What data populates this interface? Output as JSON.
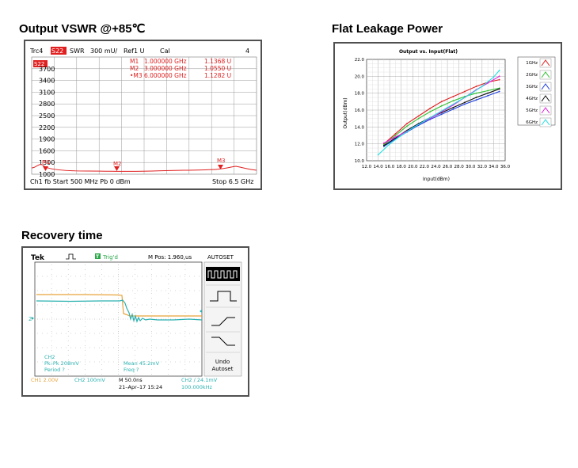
{
  "headings": {
    "vswr": "Output VSWR @+85℃",
    "leakage": "Flat Leakage Power",
    "recovery": "Recovery time"
  },
  "vswr_screen": {
    "trace": "Trc4",
    "param": "S22",
    "format": "SWR",
    "scale": "300 mU/",
    "ref": "Ref1 U",
    "cal": "Cal",
    "channel_num": "4",
    "trace_tag": "S22",
    "markers": [
      {
        "label": "M1",
        "freq": "1.000000 GHz",
        "value": "1.1368 U"
      },
      {
        "label": "M2",
        "freq": "3.000000 GHz",
        "value": "1.0550 U"
      },
      {
        "label": "•M3",
        "freq": "6.000000 GHz",
        "value": "1.1282 U"
      }
    ],
    "marker_tags": [
      "M1",
      "M2",
      "M3"
    ],
    "y_ticks": [
      "3700",
      "3400",
      "3100",
      "2800",
      "2500",
      "2200",
      "1900",
      "1600",
      "1300",
      "1000"
    ],
    "footer_left": "Ch1  fb  Start  500 MHz  Pb   0 dBm",
    "footer_right": "Stop  6.5 GHz"
  },
  "chart_data": {
    "type": "line",
    "title": "Output vs. Input(Flat)",
    "xlabel": "Input(dBm)",
    "ylabel": "Output(dBm)",
    "xlim": [
      12.0,
      36.0
    ],
    "ylim": [
      10.0,
      22.0
    ],
    "x_ticks": [
      "12.0",
      "14.0",
      "16.0",
      "18.0",
      "20.0",
      "22.0",
      "24.0",
      "26.0",
      "28.0",
      "30.0",
      "32.0",
      "34.0",
      "36.0"
    ],
    "y_ticks": [
      "10.0",
      "12.0",
      "14.0",
      "16.0",
      "18.0",
      "20.0",
      "22.0"
    ],
    "legend_position": "right",
    "series": [
      {
        "name": "1GHz",
        "color": "#e02020",
        "x": [
          15,
          17,
          19,
          21,
          23,
          25,
          27,
          29,
          31,
          33,
          35
        ],
        "y": [
          12.0,
          13.2,
          14.4,
          15.3,
          16.2,
          17.0,
          17.6,
          18.2,
          18.8,
          19.3,
          19.6
        ]
      },
      {
        "name": "2GHz",
        "color": "#30c030",
        "x": [
          15,
          17,
          19,
          21,
          23,
          25,
          27,
          29,
          31,
          33,
          35
        ],
        "y": [
          11.9,
          13.0,
          14.1,
          15.0,
          15.8,
          16.5,
          17.1,
          17.6,
          18.0,
          18.3,
          18.6
        ]
      },
      {
        "name": "3GHz",
        "color": "#2040e0",
        "x": [
          15,
          17,
          19,
          21,
          23,
          25,
          27,
          29,
          31,
          33,
          35
        ],
        "y": [
          11.7,
          12.6,
          13.4,
          14.2,
          14.9,
          15.5,
          16.1,
          16.7,
          17.2,
          17.7,
          18.2
        ]
      },
      {
        "name": "4GHz",
        "color": "#101010",
        "x": [
          15,
          17,
          19,
          21,
          23,
          25,
          27,
          29,
          31,
          33,
          35
        ],
        "y": [
          11.8,
          12.7,
          13.6,
          14.4,
          15.1,
          15.7,
          16.3,
          16.9,
          17.5,
          18.0,
          18.5
        ]
      },
      {
        "name": "5GHz",
        "color": "#e020e0",
        "x": [
          15,
          17,
          19,
          21,
          23,
          25,
          27,
          29,
          31,
          33,
          35
        ],
        "y": [
          12.1,
          12.8,
          13.5,
          14.3,
          15.0,
          15.8,
          16.6,
          17.5,
          18.4,
          19.2,
          20.0
        ]
      },
      {
        "name": "6GHz",
        "color": "#20e0e0",
        "x": [
          14,
          16,
          18,
          20,
          22,
          24,
          26,
          28,
          30,
          32,
          34,
          35
        ],
        "y": [
          10.7,
          12.0,
          13.0,
          13.9,
          14.7,
          15.5,
          16.3,
          17.1,
          17.9,
          18.8,
          19.9,
          20.7
        ]
      }
    ]
  },
  "scope": {
    "brand": "Tek",
    "trig_status": "Trig'd",
    "mpos": "M Pos: 1.960,us",
    "autoset": "AUTOSET",
    "ch2_marker": "2",
    "ch2_label": "CH2",
    "pkpk": "Pk–Pk 208mV",
    "period": "Period ?",
    "mean": "Mean 45.2mV",
    "freq": "Freq ?",
    "undo": "Undo",
    "autoset_btn": "Autoset",
    "ch1_scale": "CH1  2.00V",
    "ch2_scale": "CH2  100mV",
    "time_scale": "M 50.0ns",
    "date": "21–Apr–17 15:24",
    "trig_level": "CH2 ∕ 24.1mV",
    "trig_freq": "100.000kHz"
  }
}
